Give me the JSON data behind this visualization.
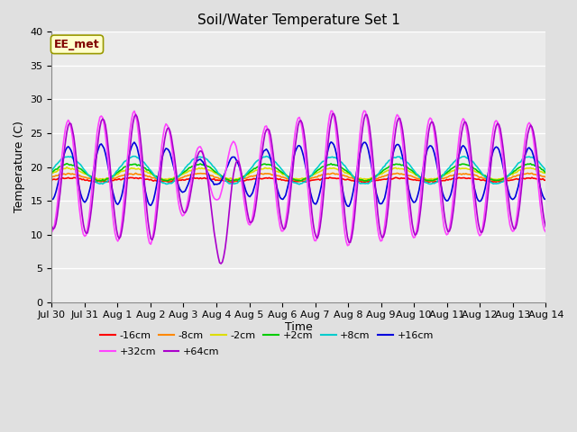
{
  "title": "Soil/Water Temperature Set 1",
  "xlabel": "Time",
  "ylabel": "Temperature (C)",
  "ylim": [
    0,
    40
  ],
  "yticks": [
    0,
    5,
    10,
    15,
    20,
    25,
    30,
    35,
    40
  ],
  "background_color": "#e0e0e0",
  "plot_bg_color": "#ebebeb",
  "annotation_text": "EE_met",
  "annotation_box_color": "#ffffcc",
  "annotation_text_color": "#800000",
  "tick_labels": [
    "Jul 30",
    "Jul 31",
    "Aug 1",
    "Aug 2",
    "Aug 3",
    "Aug 4",
    "Aug 5",
    "Aug 6",
    "Aug 7",
    "Aug 8",
    "Aug 9",
    "Aug 10",
    "Aug 11",
    "Aug 12",
    "Aug 13",
    "Aug 14"
  ],
  "tick_positions": [
    0,
    1,
    2,
    3,
    4,
    5,
    6,
    7,
    8,
    9,
    10,
    11,
    12,
    13,
    14,
    15
  ],
  "series": [
    {
      "label": "-16cm",
      "color": "#ff0000",
      "mean": 18.1,
      "amp": 0.25,
      "phase_shift": 0.0
    },
    {
      "label": "-8cm",
      "color": "#ff8800",
      "mean": 18.5,
      "amp": 0.5,
      "phase_shift": 0.0
    },
    {
      "label": "-2cm",
      "color": "#dddd00",
      "mean": 19.0,
      "amp": 0.8,
      "phase_shift": 0.0
    },
    {
      "label": "+2cm",
      "color": "#00cc00",
      "mean": 19.2,
      "amp": 1.2,
      "phase_shift": 0.0
    },
    {
      "label": "+8cm",
      "color": "#00cccc",
      "mean": 19.5,
      "amp": 2.0,
      "phase_shift": 0.0
    },
    {
      "label": "+16cm",
      "color": "#0000dd",
      "mean": 19.0,
      "amp": 4.5,
      "phase_shift": 0.0
    },
    {
      "label": "+32cm",
      "color": "#ff44ff",
      "mean": 18.5,
      "amp": 9.5,
      "phase_shift": 0.0
    },
    {
      "label": "+64cm",
      "color": "#aa00cc",
      "mean": 18.5,
      "amp": 9.0,
      "phase_shift": 0.05
    }
  ]
}
